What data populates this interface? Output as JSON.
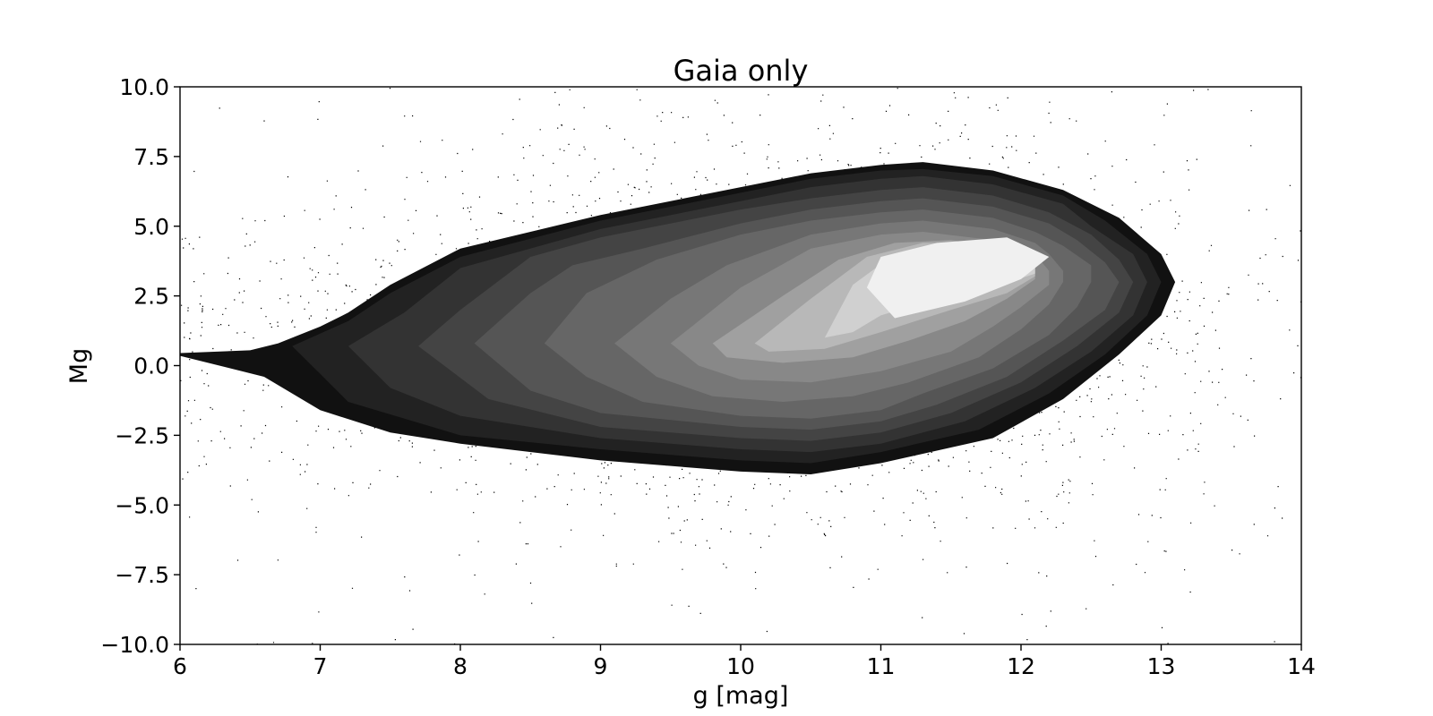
{
  "chart_data": {
    "type": "scatter",
    "title": "Gaia only",
    "xlabel": "g [mag]",
    "ylabel": "Mg",
    "xlim": [
      6,
      14
    ],
    "ylim": [
      -10,
      10
    ],
    "x_ticks": [
      "6",
      "7",
      "8",
      "9",
      "10",
      "11",
      "12",
      "13",
      "14"
    ],
    "y_ticks": [
      "10.0",
      "7.5",
      "5.0",
      "2.5",
      "0.0",
      "−2.5",
      "−5.0",
      "−7.5",
      "−10.0"
    ],
    "x_tick_values": [
      6,
      7,
      8,
      9,
      10,
      11,
      12,
      13,
      14
    ],
    "y_tick_values": [
      10,
      7.5,
      5,
      2.5,
      0,
      -2.5,
      -5,
      -7.5,
      -10
    ],
    "grid": false,
    "legend": "none",
    "density_contours": [
      {
        "level": 1,
        "color": "#111111",
        "polygon": [
          [
            6.0,
            0.45
          ],
          [
            6.5,
            0.55
          ],
          [
            6.7,
            0.8
          ],
          [
            7.0,
            1.4
          ],
          [
            7.2,
            1.9
          ],
          [
            7.5,
            2.9
          ],
          [
            8.0,
            4.2
          ],
          [
            9.0,
            5.4
          ],
          [
            10.0,
            6.4
          ],
          [
            10.5,
            6.9
          ],
          [
            11.0,
            7.2
          ],
          [
            11.3,
            7.3
          ],
          [
            11.8,
            7.0
          ],
          [
            12.3,
            6.3
          ],
          [
            12.7,
            5.3
          ],
          [
            13.0,
            4.0
          ],
          [
            13.1,
            3.0
          ],
          [
            13.0,
            1.8
          ],
          [
            12.7,
            0.4
          ],
          [
            12.3,
            -1.2
          ],
          [
            11.8,
            -2.6
          ],
          [
            11.0,
            -3.5
          ],
          [
            10.5,
            -3.9
          ],
          [
            10.0,
            -3.8
          ],
          [
            9.0,
            -3.4
          ],
          [
            8.0,
            -2.8
          ],
          [
            7.5,
            -2.4
          ],
          [
            7.0,
            -1.6
          ],
          [
            6.6,
            -0.4
          ],
          [
            6.0,
            0.35
          ]
        ]
      },
      {
        "level": 2,
        "color": "#222222",
        "polygon": [
          [
            6.8,
            0.7
          ],
          [
            7.2,
            1.6
          ],
          [
            7.5,
            2.6
          ],
          [
            8.0,
            3.9
          ],
          [
            9.0,
            5.2
          ],
          [
            10.0,
            6.2
          ],
          [
            10.5,
            6.7
          ],
          [
            11.0,
            7.0
          ],
          [
            11.3,
            7.05
          ],
          [
            11.8,
            6.8
          ],
          [
            12.3,
            6.1
          ],
          [
            12.6,
            5.2
          ],
          [
            12.9,
            4.0
          ],
          [
            13.0,
            3.0
          ],
          [
            12.9,
            1.8
          ],
          [
            12.6,
            0.4
          ],
          [
            12.2,
            -1.0
          ],
          [
            11.7,
            -2.3
          ],
          [
            11.0,
            -3.1
          ],
          [
            10.5,
            -3.5
          ],
          [
            10.0,
            -3.4
          ],
          [
            9.0,
            -3.0
          ],
          [
            8.0,
            -2.5
          ],
          [
            7.2,
            -1.3
          ],
          [
            7.0,
            -0.3
          ]
        ]
      },
      {
        "level": 3,
        "color": "#333333",
        "polygon": [
          [
            7.2,
            0.7
          ],
          [
            7.6,
            1.9
          ],
          [
            8.0,
            3.5
          ],
          [
            9.0,
            4.9
          ],
          [
            10.0,
            5.9
          ],
          [
            10.5,
            6.4
          ],
          [
            11.0,
            6.7
          ],
          [
            11.3,
            6.8
          ],
          [
            11.8,
            6.5
          ],
          [
            12.3,
            5.8
          ],
          [
            12.5,
            5.0
          ],
          [
            12.8,
            4.0
          ],
          [
            12.9,
            3.0
          ],
          [
            12.8,
            1.8
          ],
          [
            12.5,
            0.5
          ],
          [
            12.1,
            -0.8
          ],
          [
            11.6,
            -2.0
          ],
          [
            11.0,
            -2.8
          ],
          [
            10.5,
            -3.1
          ],
          [
            10.0,
            -3.0
          ],
          [
            9.0,
            -2.6
          ],
          [
            8.0,
            -1.8
          ],
          [
            7.5,
            -0.8
          ]
        ]
      },
      {
        "level": 4,
        "color": "#444444",
        "polygon": [
          [
            7.7,
            0.7
          ],
          [
            8.0,
            2.0
          ],
          [
            8.5,
            3.9
          ],
          [
            9.0,
            4.6
          ],
          [
            10.0,
            5.6
          ],
          [
            10.5,
            6.0
          ],
          [
            11.0,
            6.3
          ],
          [
            11.3,
            6.4
          ],
          [
            11.8,
            6.1
          ],
          [
            12.2,
            5.5
          ],
          [
            12.5,
            4.7
          ],
          [
            12.7,
            3.8
          ],
          [
            12.8,
            3.0
          ],
          [
            12.7,
            1.9
          ],
          [
            12.4,
            0.7
          ],
          [
            12.0,
            -0.6
          ],
          [
            11.5,
            -1.7
          ],
          [
            11.0,
            -2.4
          ],
          [
            10.5,
            -2.7
          ],
          [
            10.0,
            -2.6
          ],
          [
            9.0,
            -2.2
          ],
          [
            8.2,
            -1.2
          ]
        ]
      },
      {
        "level": 5,
        "color": "#555555",
        "polygon": [
          [
            8.1,
            0.8
          ],
          [
            8.5,
            2.6
          ],
          [
            8.8,
            3.6
          ],
          [
            9.3,
            4.2
          ],
          [
            10.0,
            5.1
          ],
          [
            10.5,
            5.6
          ],
          [
            11.0,
            5.9
          ],
          [
            11.3,
            6.0
          ],
          [
            11.8,
            5.7
          ],
          [
            12.2,
            5.1
          ],
          [
            12.4,
            4.5
          ],
          [
            12.6,
            3.7
          ],
          [
            12.7,
            3.0
          ],
          [
            12.6,
            2.0
          ],
          [
            12.3,
            0.9
          ],
          [
            11.9,
            -0.4
          ],
          [
            11.4,
            -1.4
          ],
          [
            11.0,
            -2.0
          ],
          [
            10.5,
            -2.3
          ],
          [
            10.0,
            -2.2
          ],
          [
            9.0,
            -1.7
          ],
          [
            8.5,
            -0.9
          ]
        ]
      },
      {
        "level": 6,
        "color": "#666666",
        "polygon": [
          [
            8.6,
            0.8
          ],
          [
            8.9,
            2.6
          ],
          [
            9.4,
            3.8
          ],
          [
            10.0,
            4.7
          ],
          [
            10.5,
            5.2
          ],
          [
            11.0,
            5.5
          ],
          [
            11.3,
            5.6
          ],
          [
            11.8,
            5.3
          ],
          [
            12.1,
            4.8
          ],
          [
            12.3,
            4.3
          ],
          [
            12.5,
            3.6
          ],
          [
            12.5,
            3.0
          ],
          [
            12.4,
            2.1
          ],
          [
            12.2,
            1.1
          ],
          [
            11.8,
            -0.1
          ],
          [
            11.3,
            -1.0
          ],
          [
            11.0,
            -1.6
          ],
          [
            10.5,
            -1.9
          ],
          [
            10.0,
            -1.8
          ],
          [
            9.3,
            -1.3
          ],
          [
            8.9,
            -0.4
          ]
        ]
      },
      {
        "level": 7,
        "color": "#777777",
        "polygon": [
          [
            9.1,
            0.8
          ],
          [
            9.5,
            2.4
          ],
          [
            9.9,
            3.6
          ],
          [
            10.5,
            4.7
          ],
          [
            11.0,
            5.1
          ],
          [
            11.3,
            5.2
          ],
          [
            11.8,
            4.9
          ],
          [
            12.1,
            4.4
          ],
          [
            12.2,
            4.0
          ],
          [
            12.3,
            3.4
          ],
          [
            12.3,
            3.0
          ],
          [
            12.2,
            2.2
          ],
          [
            12.0,
            1.3
          ],
          [
            11.7,
            0.3
          ],
          [
            11.2,
            -0.6
          ],
          [
            10.8,
            -1.1
          ],
          [
            10.3,
            -1.3
          ],
          [
            9.8,
            -1.1
          ],
          [
            9.4,
            -0.4
          ]
        ]
      },
      {
        "level": 8,
        "color": "#888888",
        "polygon": [
          [
            9.5,
            0.8
          ],
          [
            10.0,
            2.8
          ],
          [
            10.5,
            4.2
          ],
          [
            11.0,
            4.7
          ],
          [
            11.3,
            4.8
          ],
          [
            11.8,
            4.5
          ],
          [
            12.1,
            4.0
          ],
          [
            12.2,
            3.4
          ],
          [
            12.2,
            2.9
          ],
          [
            12.0,
            2.1
          ],
          [
            11.8,
            1.4
          ],
          [
            11.5,
            0.5
          ],
          [
            11.0,
            -0.2
          ],
          [
            10.5,
            -0.6
          ],
          [
            10.0,
            -0.5
          ],
          [
            9.7,
            0.0
          ]
        ]
      },
      {
        "level": 9,
        "color": "#a0a0a0",
        "polygon": [
          [
            9.8,
            0.8
          ],
          [
            10.3,
            2.5
          ],
          [
            10.7,
            3.8
          ],
          [
            11.1,
            4.4
          ],
          [
            11.5,
            4.5
          ],
          [
            11.9,
            4.2
          ],
          [
            12.1,
            3.8
          ],
          [
            12.1,
            3.1
          ],
          [
            11.9,
            2.4
          ],
          [
            11.6,
            1.6
          ],
          [
            11.2,
            0.9
          ],
          [
            10.8,
            0.3
          ],
          [
            10.3,
            0.1
          ],
          [
            9.9,
            0.3
          ]
        ]
      },
      {
        "level": 10,
        "color": "#b8b8b8",
        "polygon": [
          [
            10.1,
            0.8
          ],
          [
            10.5,
            2.4
          ],
          [
            10.9,
            3.9
          ],
          [
            11.3,
            4.4
          ],
          [
            11.8,
            4.4
          ],
          [
            12.1,
            3.9
          ],
          [
            12.1,
            3.2
          ],
          [
            11.9,
            2.6
          ],
          [
            11.5,
            2.0
          ],
          [
            11.0,
            1.2
          ],
          [
            10.6,
            0.6
          ],
          [
            10.2,
            0.5
          ]
        ]
      },
      {
        "level": 11,
        "color": "#d0d0d0",
        "polygon": [
          [
            10.6,
            1.0
          ],
          [
            10.8,
            2.9
          ],
          [
            11.1,
            4.0
          ],
          [
            11.5,
            4.4
          ],
          [
            11.9,
            4.4
          ],
          [
            12.1,
            3.9
          ],
          [
            12.1,
            3.3
          ],
          [
            11.8,
            2.8
          ],
          [
            11.4,
            2.4
          ],
          [
            11.0,
            1.8
          ],
          [
            10.8,
            1.2
          ]
        ]
      },
      {
        "level": 12,
        "color": "#f0f0f0",
        "polygon": [
          [
            10.9,
            2.8
          ],
          [
            11.0,
            3.9
          ],
          [
            11.4,
            4.4
          ],
          [
            11.9,
            4.6
          ],
          [
            12.2,
            3.9
          ],
          [
            12.0,
            3.1
          ],
          [
            11.6,
            2.3
          ],
          [
            11.1,
            1.7
          ]
        ]
      }
    ],
    "scatter_points": {
      "description_only": false,
      "count": 9000,
      "color": "#000000",
      "seed": 7
    }
  }
}
